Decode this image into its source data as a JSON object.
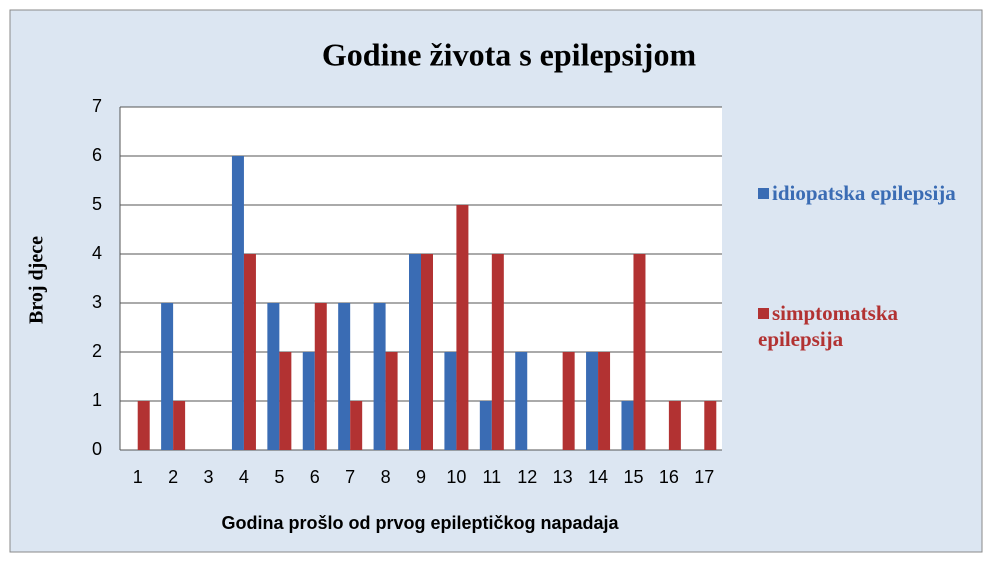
{
  "chart_data": {
    "type": "bar",
    "title": "Godine života s epilepsijom",
    "x_label": "Godina prošlo od prvog epileptičkog napadaja",
    "y_label": "Broj djece",
    "categories": [
      "1",
      "2",
      "3",
      "4",
      "5",
      "6",
      "7",
      "8",
      "9",
      "10",
      "11",
      "12",
      "13",
      "14",
      "15",
      "16",
      "17"
    ],
    "series": [
      {
        "name": "idiopatska epilepsija",
        "color": "#3a6cb4",
        "values": [
          0,
          3,
          0,
          6,
          3,
          2,
          3,
          3,
          4,
          2,
          1,
          2,
          0,
          2,
          1,
          0,
          0
        ]
      },
      {
        "name": "simptomatska epilepsija",
        "color": "#b23232",
        "values": [
          1,
          1,
          0,
          4,
          2,
          3,
          1,
          2,
          4,
          5,
          4,
          0,
          2,
          2,
          4,
          1,
          1
        ]
      }
    ],
    "ylim": [
      0,
      7
    ],
    "yticks": [
      0,
      1,
      2,
      3,
      4,
      5,
      6,
      7
    ],
    "grid": true,
    "legend": "right"
  }
}
